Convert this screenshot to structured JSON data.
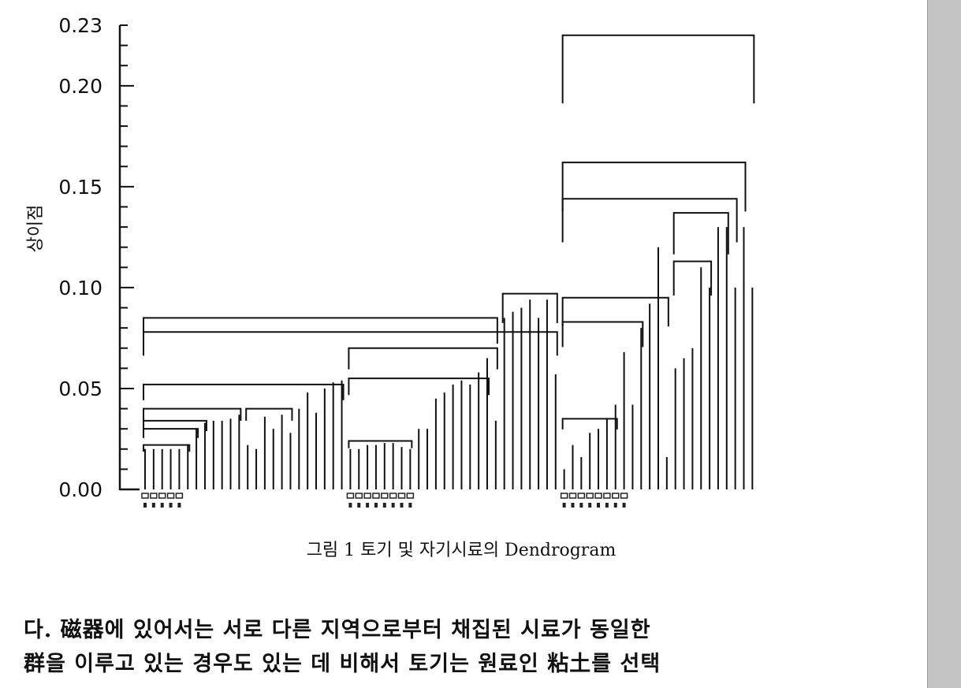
{
  "chart_data": {
    "type": "dendrogram",
    "ylabel": "상이점",
    "ylim": [
      0,
      0.23
    ],
    "y_ticks": [
      "0.00",
      "0.05",
      "0.10",
      "0.15",
      "0.20",
      "0.23"
    ],
    "y_tick_values": [
      0,
      0.05,
      0.1,
      0.15,
      0.2,
      0.23
    ],
    "leaf_heights": [
      0.02,
      0.02,
      0.02,
      0.02,
      0.02,
      0.022,
      0.03,
      0.033,
      0.034,
      0.034,
      0.035,
      0.037,
      0.022,
      0.02,
      0.036,
      0.03,
      0.037,
      0.028,
      0.04,
      0.048,
      0.038,
      0.05,
      0.053,
      0.054,
      0.02,
      0.02,
      0.022,
      0.022,
      0.023,
      0.023,
      0.021,
      0.02,
      0.03,
      0.03,
      0.045,
      0.048,
      0.052,
      0.054,
      0.052,
      0.058,
      0.065,
      0.034,
      0.085,
      0.088,
      0.09,
      0.094,
      0.085,
      0.094,
      0.057,
      0.01,
      0.022,
      0.016,
      0.028,
      0.03,
      0.035,
      0.042,
      0.068,
      0.042,
      0.08,
      0.092,
      0.12,
      0.016,
      0.06,
      0.065,
      0.07,
      0.11,
      0.1,
      0.13,
      0.13,
      0.1,
      0.13,
      0.1
    ],
    "clusters": [
      {
        "leaves": [
          0,
          5
        ],
        "height": 0.022
      },
      {
        "leaves": [
          0,
          6
        ],
        "height": 0.03
      },
      {
        "leaves": [
          0,
          7
        ],
        "height": 0.034
      },
      {
        "leaves": [
          0,
          11
        ],
        "height": 0.04
      },
      {
        "leaves": [
          12,
          17
        ],
        "height": 0.04
      },
      {
        "leaves": [
          0,
          23
        ],
        "height": 0.052
      },
      {
        "leaves": [
          24,
          31
        ],
        "height": 0.024
      },
      {
        "leaves": [
          24,
          40
        ],
        "height": 0.055
      },
      {
        "leaves": [
          24,
          41
        ],
        "height": 0.07
      },
      {
        "leaves": [
          0,
          41
        ],
        "height": 0.085
      },
      {
        "leaves": [
          42,
          48
        ],
        "height": 0.097
      },
      {
        "leaves": [
          0,
          48
        ],
        "height": 0.078
      },
      {
        "leaves": [
          49,
          55
        ],
        "height": 0.035
      },
      {
        "leaves": [
          49,
          58
        ],
        "height": 0.083
      },
      {
        "leaves": [
          49,
          61
        ],
        "height": 0.095
      },
      {
        "leaves": [
          62,
          66
        ],
        "height": 0.113
      },
      {
        "leaves": [
          62,
          68
        ],
        "height": 0.137
      },
      {
        "leaves": [
          49,
          69
        ],
        "height": 0.144
      },
      {
        "leaves": [
          49,
          70
        ],
        "height": 0.162
      },
      {
        "leaves": [
          49,
          71
        ],
        "height": 0.225
      }
    ]
  },
  "caption": "그림 1   토기 및 자기시료의 Dendrogram",
  "body_text": [
    "다. 磁器에 있어서는 서로 다른 지역으로부터 채집된 시료가 동일한",
    "群을 이루고 있는 경우도 있는 데 비해서 토기는 원료인 粘土를 선택"
  ]
}
